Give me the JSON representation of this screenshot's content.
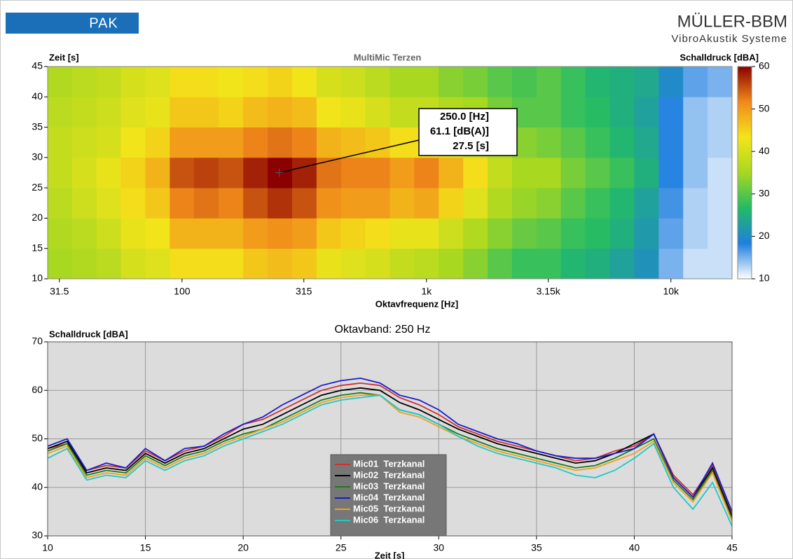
{
  "header": {
    "logo": "PAK",
    "company": "MÜLLER-BBM",
    "subtitle": "VibroAkustik Systeme"
  },
  "chart_data": [
    {
      "type": "heatmap",
      "title": "MultiMic  Terzen",
      "ylabel": "Zeit [s]",
      "xlabel": "Oktavfrequenz [Hz]",
      "colorbar_label": "Schalldruck [dBA]",
      "xscale": "log",
      "xlim": [
        28.2,
        17783
      ],
      "xticks": [
        31.5,
        100,
        315,
        {
          "value": 1000,
          "label": "1k"
        },
        {
          "value": 3150,
          "label": "3.15k"
        },
        {
          "value": 10000,
          "label": "10k"
        }
      ],
      "xbins": [
        28.2,
        35.5,
        44.7,
        56.2,
        70.8,
        89.1,
        112,
        141,
        178,
        224,
        282,
        355,
        447,
        562,
        708,
        891,
        1122,
        1413,
        1778,
        2239,
        2818,
        3548,
        4467,
        5623,
        7079,
        8913,
        11220,
        14125,
        17783
      ],
      "ylim": [
        10,
        45
      ],
      "yticks": [
        10,
        15,
        20,
        25,
        30,
        35,
        40,
        45
      ],
      "ybins": [
        10,
        15,
        20,
        25,
        30,
        35,
        40,
        45
      ],
      "values": [
        [
          35,
          36,
          37,
          40,
          41,
          44,
          44,
          44,
          46,
          47,
          46,
          42,
          41,
          40,
          38,
          37,
          35,
          33,
          30,
          28,
          28,
          26,
          25,
          23,
          21,
          15,
          12,
          12
        ],
        [
          36,
          37,
          39,
          42,
          43,
          48,
          48,
          48,
          50,
          51,
          50,
          46,
          45,
          44,
          42,
          42,
          39,
          36,
          33,
          31,
          30,
          28,
          27,
          25,
          22,
          16,
          13,
          12
        ],
        [
          37,
          39,
          41,
          44,
          46,
          52,
          53,
          52,
          55,
          57,
          55,
          51,
          50,
          50,
          48,
          49,
          45,
          41,
          36,
          34,
          33,
          30,
          28,
          26,
          23,
          17,
          13,
          12
        ],
        [
          38,
          40,
          42,
          45,
          48,
          55,
          56,
          55,
          58,
          60,
          58,
          53,
          52,
          52,
          50,
          52,
          48,
          44,
          38,
          35,
          35,
          32,
          30,
          28,
          25,
          18,
          14,
          12
        ],
        [
          38,
          39,
          40,
          43,
          45,
          50,
          50,
          50,
          52,
          53,
          52,
          48,
          47,
          46,
          44,
          44,
          41,
          38,
          35,
          33,
          32,
          30,
          28,
          26,
          24,
          18,
          14,
          13
        ],
        [
          37,
          38,
          39,
          41,
          42,
          46,
          46,
          45,
          47,
          48,
          47,
          43,
          42,
          40,
          38,
          38,
          36,
          35,
          32,
          30,
          30,
          28,
          27,
          25,
          23,
          18,
          14,
          13
        ],
        [
          36,
          37,
          38,
          40,
          41,
          44,
          44,
          43,
          44,
          45,
          43,
          40,
          39,
          37,
          35,
          35,
          33,
          32,
          30,
          29,
          30,
          28,
          26,
          25,
          24,
          20,
          16,
          15
        ]
      ],
      "clim": [
        10,
        60
      ],
      "cticks": [
        10,
        20,
        30,
        40,
        50,
        60
      ],
      "colormap": [
        "#ffffff",
        "#1f7fe0",
        "#22bb66",
        "#a8d820",
        "#f4e41a",
        "#f08a1a",
        "#8b0000"
      ],
      "annotation": {
        "x": 250,
        "y": 27.5,
        "lines": [
          "250.0 [Hz]",
          "61.1 [dB(A)]",
          "27.5 [s]"
        ]
      }
    },
    {
      "type": "line",
      "title": "Oktavband: 250 Hz",
      "ylabel": "Schalldruck [dBA]",
      "xlabel": "Zeit [s]",
      "xlim": [
        10,
        45
      ],
      "xticks": [
        10,
        15,
        20,
        25,
        30,
        35,
        40,
        45
      ],
      "ylim": [
        30,
        70
      ],
      "yticks": [
        30,
        40,
        50,
        60,
        70
      ],
      "grid": true,
      "background": "#dcdcdc",
      "legend": "bottom-center",
      "x": [
        10,
        11,
        12,
        13,
        14,
        15,
        16,
        17,
        18,
        19,
        20,
        21,
        22,
        23,
        24,
        25,
        26,
        27,
        28,
        29,
        30,
        31,
        32,
        33,
        34,
        35,
        36,
        37,
        38,
        39,
        40,
        41,
        42,
        43,
        44,
        45
      ],
      "series": [
        {
          "name": "Mic01  Terzkanal",
          "color": "#d03030",
          "values": [
            48,
            49,
            43.5,
            44.5,
            44,
            47.5,
            45.5,
            47.5,
            48.5,
            50.5,
            53,
            54,
            56,
            58,
            60,
            61,
            61.5,
            61,
            58.5,
            57,
            55,
            52.5,
            51,
            49.5,
            48.5,
            47.5,
            46.5,
            45.5,
            46,
            47.5,
            48.5,
            51,
            42.5,
            38.5,
            44.5,
            34.5
          ]
        },
        {
          "name": "Mic02  Terzkanal",
          "color": "#000000",
          "values": [
            48,
            49.5,
            43,
            44,
            43.5,
            47,
            45,
            47,
            48,
            50,
            52,
            53,
            55,
            57,
            59,
            60,
            60.5,
            60,
            57.5,
            56,
            54,
            52,
            50.5,
            49,
            48,
            47,
            46,
            45,
            45.5,
            47,
            49,
            51,
            42,
            38,
            44,
            34
          ]
        },
        {
          "name": "Mic03  Terzkanal",
          "color": "#1a7a1a",
          "values": [
            47.5,
            49,
            42.5,
            43.5,
            43,
            46.5,
            44.5,
            46.5,
            47.5,
            49.5,
            51,
            52,
            54,
            56,
            58,
            59,
            59.5,
            59,
            56,
            55,
            53,
            51,
            49.5,
            48,
            47,
            46,
            45,
            44,
            44.5,
            46,
            48,
            50,
            41.5,
            37.5,
            43.5,
            33.5
          ]
        },
        {
          "name": "Mic04  Terzkanal",
          "color": "#1a1ad0",
          "values": [
            48.5,
            50,
            43.5,
            45,
            44,
            48,
            45.5,
            48,
            48.5,
            51,
            53,
            54.5,
            57,
            59,
            61,
            62,
            62.5,
            61.5,
            59,
            58,
            56,
            53,
            51.5,
            50,
            49,
            47.5,
            46.5,
            46,
            46,
            47,
            48,
            51,
            42,
            38,
            45,
            35
          ]
        },
        {
          "name": "Mic05  Terzkanal",
          "color": "#f0a020",
          "values": [
            47,
            48.5,
            42,
            43,
            42.5,
            46,
            44,
            46,
            47,
            49,
            50.5,
            52,
            53.5,
            55.5,
            57.5,
            58.5,
            59,
            59,
            55.5,
            54.5,
            52.5,
            50.5,
            49,
            47.5,
            46.5,
            45.5,
            44.5,
            43.5,
            44,
            45.5,
            47,
            49.5,
            41,
            37,
            43,
            33
          ]
        },
        {
          "name": "Mic06  Terzkanal",
          "color": "#20c8c8",
          "values": [
            46,
            48,
            41.5,
            42.5,
            42,
            45.5,
            43.5,
            45.5,
            46.5,
            48.5,
            50,
            51.5,
            53,
            55,
            57,
            58,
            58.5,
            59,
            56,
            55,
            53,
            50.5,
            48.5,
            47,
            46,
            45,
            44,
            42.5,
            42,
            43.5,
            46,
            49,
            40,
            35.5,
            41,
            32
          ]
        }
      ]
    }
  ]
}
